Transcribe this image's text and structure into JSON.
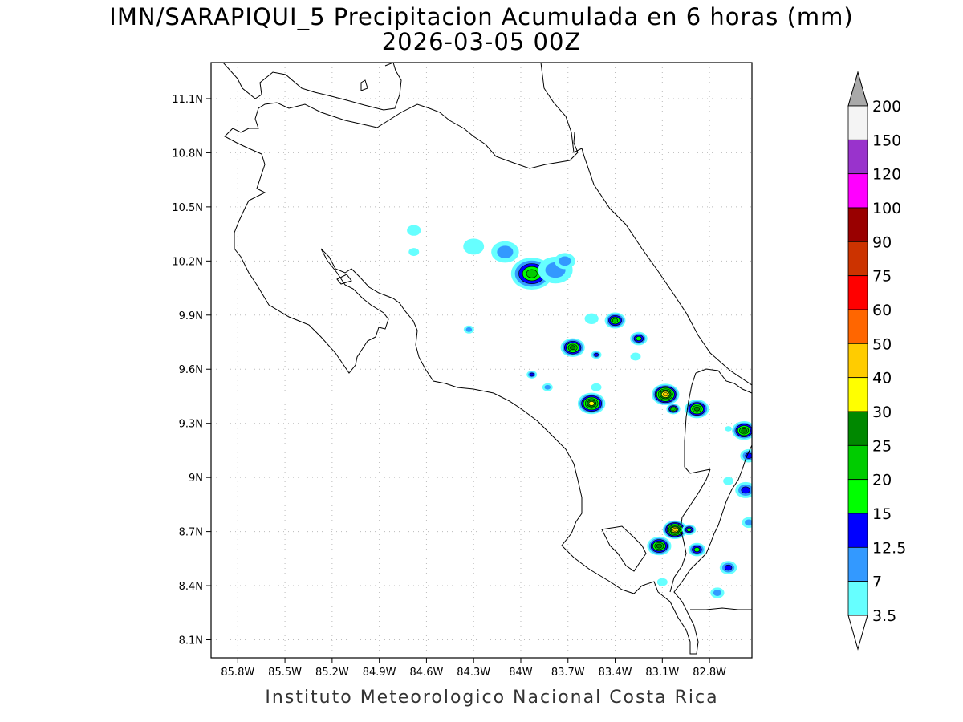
{
  "title": {
    "line1": "IMN/SARAPIQUI_5 Precipitacion Acumulada en 6 horas (mm)",
    "line2": "2026-03-05 00Z"
  },
  "axes": {
    "x_ticks": [
      "85.8W",
      "85.5W",
      "85.2W",
      "84.9W",
      "84.6W",
      "84.3W",
      "84W",
      "83.7W",
      "83.4W",
      "83.1W",
      "82.8W"
    ],
    "y_ticks": [
      "11.1N",
      "10.8N",
      "10.5N",
      "10.2N",
      "9.9N",
      "9.6N",
      "9.3N",
      "9N",
      "8.7N",
      "8.4N",
      "8.1N"
    ],
    "lon_range": [
      -85.97,
      -82.53
    ],
    "lat_range": [
      8.0,
      11.3
    ]
  },
  "colorbar": {
    "labels": [
      "200",
      "150",
      "120",
      "100",
      "90",
      "75",
      "60",
      "50",
      "40",
      "30",
      "25",
      "20",
      "15",
      "12.5",
      "7",
      "3.5"
    ],
    "colors": [
      "#a9a9a9",
      "#f4f4f4",
      "#9933cc",
      "#ff00ff",
      "#990000",
      "#cc3300",
      "#ff0000",
      "#ff6600",
      "#ffcc00",
      "#ffff00",
      "#008800",
      "#00cc00",
      "#00ff00",
      "#0000ff",
      "#3399ff",
      "#66ffff",
      "#ffffff"
    ],
    "extend": "both"
  },
  "footer": "Instituto Meteorologico Nacional Costa Rica",
  "chart_data": {
    "type": "contour-map",
    "variable": "6-hour accumulated precipitation (mm)",
    "levels": [
      3.5,
      7,
      12.5,
      15,
      20,
      25,
      30,
      40,
      50,
      60,
      75,
      90,
      100,
      120,
      150,
      200
    ],
    "level_colors": [
      "#66ffff",
      "#3399ff",
      "#0000ff",
      "#00ff00",
      "#00cc00",
      "#008800",
      "#ffff00",
      "#ffcc00",
      "#ff6600",
      "#ff0000",
      "#cc3300",
      "#990000",
      "#ff00ff",
      "#9933cc",
      "#f4f4f4"
    ],
    "cells": [
      {
        "lon": -84.68,
        "lat": 10.37,
        "peak": 3.5,
        "size": 0.04
      },
      {
        "lon": -84.68,
        "lat": 10.25,
        "peak": 3.5,
        "size": 0.03
      },
      {
        "lon": -84.3,
        "lat": 10.28,
        "peak": 3.5,
        "size": 0.06
      },
      {
        "lon": -84.1,
        "lat": 10.25,
        "peak": 7,
        "size": 0.08
      },
      {
        "lon": -83.93,
        "lat": 10.13,
        "peak": 20,
        "size": 0.12
      },
      {
        "lon": -83.78,
        "lat": 10.15,
        "peak": 7,
        "size": 0.1
      },
      {
        "lon": -83.72,
        "lat": 10.2,
        "peak": 7,
        "size": 0.06
      },
      {
        "lon": -84.33,
        "lat": 9.82,
        "peak": 7,
        "size": 0.03
      },
      {
        "lon": -83.55,
        "lat": 9.88,
        "peak": 3.5,
        "size": 0.04
      },
      {
        "lon": -83.4,
        "lat": 9.87,
        "peak": 20,
        "size": 0.06
      },
      {
        "lon": -83.67,
        "lat": 9.72,
        "peak": 25,
        "size": 0.07
      },
      {
        "lon": -83.25,
        "lat": 9.77,
        "peak": 15,
        "size": 0.05
      },
      {
        "lon": -83.52,
        "lat": 9.68,
        "peak": 12.5,
        "size": 0.03
      },
      {
        "lon": -83.27,
        "lat": 9.67,
        "peak": 3.5,
        "size": 0.03
      },
      {
        "lon": -83.93,
        "lat": 9.57,
        "peak": 12.5,
        "size": 0.03
      },
      {
        "lon": -83.83,
        "lat": 9.5,
        "peak": 7,
        "size": 0.03
      },
      {
        "lon": -83.52,
        "lat": 9.5,
        "peak": 3.5,
        "size": 0.03
      },
      {
        "lon": -83.55,
        "lat": 9.41,
        "peak": 30,
        "size": 0.08
      },
      {
        "lon": -83.08,
        "lat": 9.46,
        "peak": 40,
        "size": 0.08
      },
      {
        "lon": -83.03,
        "lat": 9.38,
        "peak": 20,
        "size": 0.04
      },
      {
        "lon": -82.88,
        "lat": 9.38,
        "peak": 25,
        "size": 0.07
      },
      {
        "lon": -82.68,
        "lat": 9.27,
        "peak": 3.5,
        "size": 0.02
      },
      {
        "lon": -82.58,
        "lat": 9.26,
        "peak": 25,
        "size": 0.07
      },
      {
        "lon": -82.55,
        "lat": 9.12,
        "peak": 12.5,
        "size": 0.05
      },
      {
        "lon": -82.57,
        "lat": 8.93,
        "peak": 12.5,
        "size": 0.06
      },
      {
        "lon": -82.55,
        "lat": 8.75,
        "peak": 7,
        "size": 0.04
      },
      {
        "lon": -82.68,
        "lat": 8.98,
        "peak": 3.5,
        "size": 0.03
      },
      {
        "lon": -83.12,
        "lat": 8.62,
        "peak": 25,
        "size": 0.07
      },
      {
        "lon": -83.02,
        "lat": 8.71,
        "peak": 40,
        "size": 0.07
      },
      {
        "lon": -82.93,
        "lat": 8.71,
        "peak": 15,
        "size": 0.04
      },
      {
        "lon": -82.88,
        "lat": 8.6,
        "peak": 15,
        "size": 0.05
      },
      {
        "lon": -82.68,
        "lat": 8.5,
        "peak": 12.5,
        "size": 0.05
      },
      {
        "lon": -82.75,
        "lat": 8.36,
        "peak": 7,
        "size": 0.04
      },
      {
        "lon": -83.1,
        "lat": 8.42,
        "peak": 3.5,
        "size": 0.03
      }
    ]
  }
}
